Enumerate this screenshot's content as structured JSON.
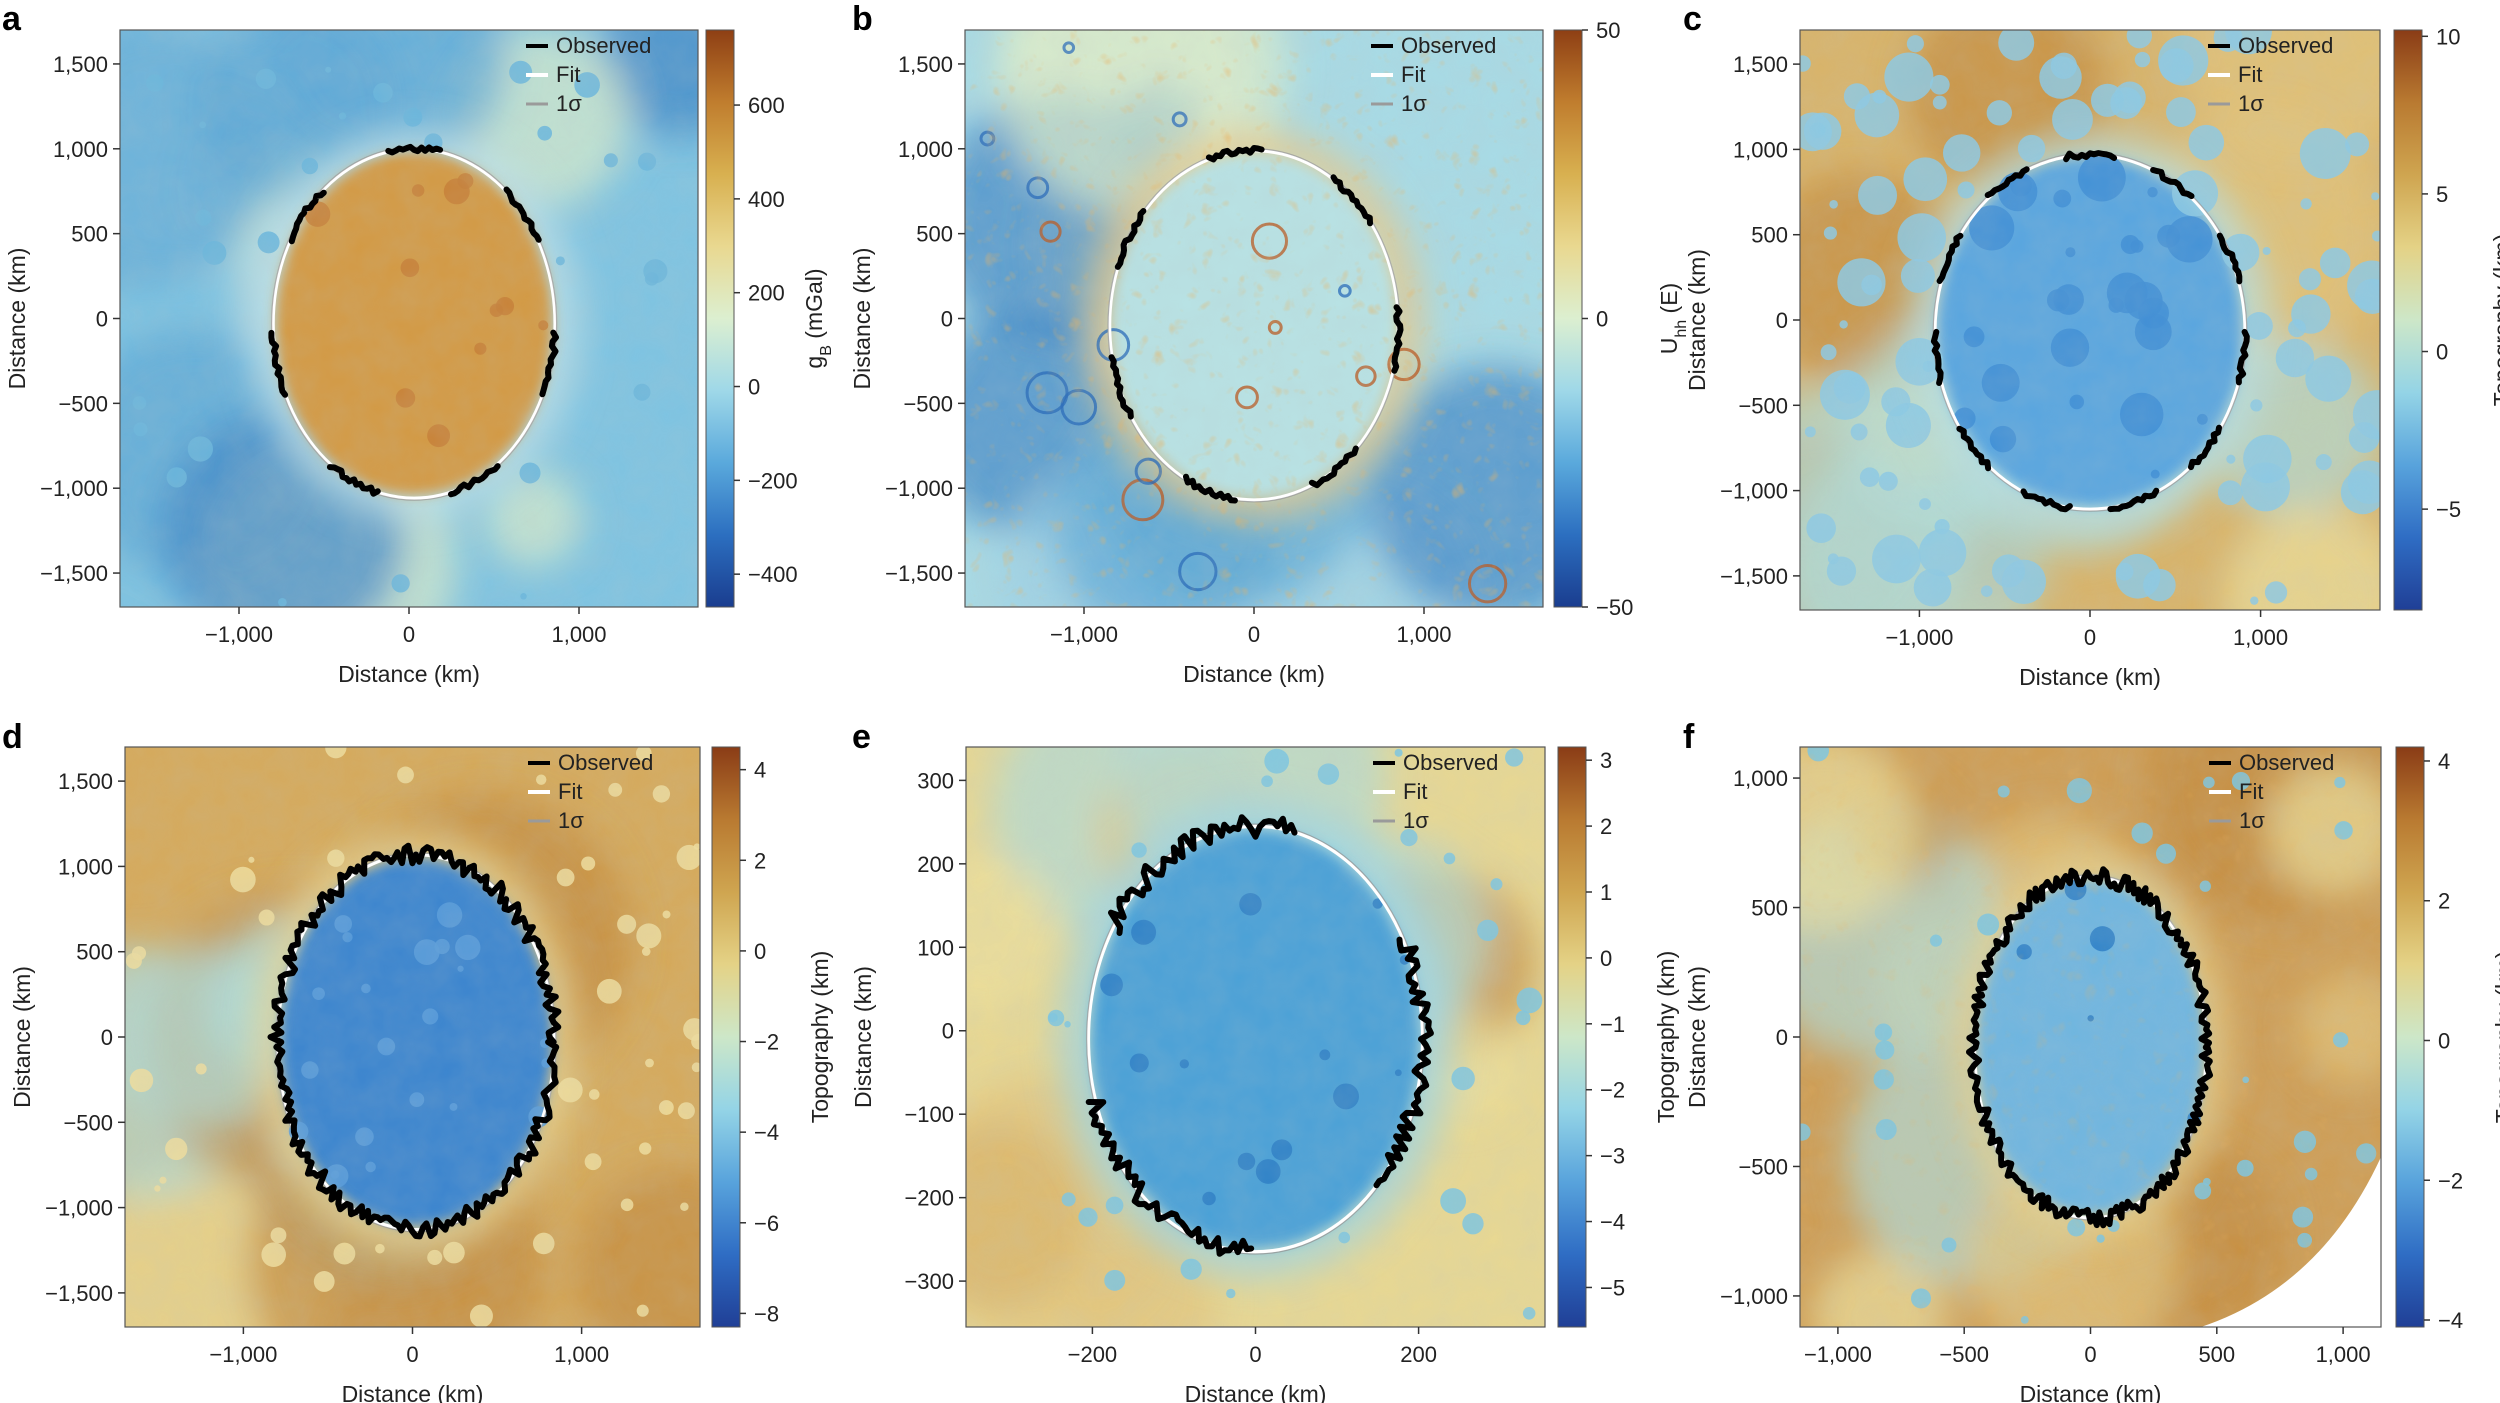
{
  "chart_data": [
    {
      "panel": "a",
      "type": "heatmap",
      "xlabel": "Distance (km)",
      "ylabel": "Distance (km)",
      "xlim": [
        -1700,
        1700
      ],
      "ylim": [
        -1700,
        1700
      ],
      "xticks": [
        -1000,
        0,
        1000
      ],
      "xtick_labels": [
        "−1,000",
        "0",
        "1,000"
      ],
      "yticks": [
        1500,
        1000,
        500,
        0,
        -500,
        -1000,
        -1500
      ],
      "ytick_labels": [
        "1,500",
        "1,000",
        "500",
        "0",
        "−500",
        "−1,000",
        "−1,500"
      ],
      "colorbar": {
        "label_main": "g",
        "label_sub": "B",
        "label_unit": " (mGal)",
        "range": [
          -470,
          760
        ],
        "ticks": [
          600,
          400,
          200,
          0,
          -200,
          -400
        ],
        "tick_labels": [
          "600",
          "400",
          "200",
          "0",
          "−200",
          "−400"
        ]
      },
      "legend": [
        "Observed",
        "Fit",
        "1σ"
      ],
      "fit_ellipse": {
        "cx": 30,
        "cy": -30,
        "rx": 830,
        "ry": 1030
      },
      "background": "gravity-anomaly"
    },
    {
      "panel": "b",
      "type": "heatmap",
      "xlabel": "Distance (km)",
      "ylabel": "Distance (km)",
      "xlim": [
        -1700,
        1700
      ],
      "ylim": [
        -1700,
        1700
      ],
      "xticks": [
        -1000,
        0,
        1000
      ],
      "xtick_labels": [
        "−1,000",
        "0",
        "1,000"
      ],
      "yticks": [
        1500,
        1000,
        500,
        0,
        -500,
        -1000,
        -1500
      ],
      "ytick_labels": [
        "1,500",
        "1,000",
        "500",
        "0",
        "−500",
        "−1,000",
        "−1,500"
      ],
      "colorbar": {
        "label_main": "U",
        "label_sub": "hh",
        "label_unit": " (E)",
        "range": [
          -50,
          50
        ],
        "ticks": [
          50,
          0,
          -50
        ],
        "tick_labels": [
          "50",
          "0",
          "−50"
        ]
      },
      "legend": [
        "Observed",
        "Fit",
        "1σ"
      ],
      "fit_ellipse": {
        "cx": 0,
        "cy": -40,
        "rx": 850,
        "ry": 1030
      },
      "background": "gravity-gradient"
    },
    {
      "panel": "c",
      "type": "heatmap",
      "xlabel": "Distance (km)",
      "ylabel": "Distance (km)",
      "xlim": [
        -1700,
        1700
      ],
      "ylim": [
        -1700,
        1700
      ],
      "xticks": [
        -1000,
        0,
        1000
      ],
      "xtick_labels": [
        "−1,000",
        "0",
        "1,000"
      ],
      "yticks": [
        1500,
        1000,
        500,
        0,
        -500,
        -1000,
        -1500
      ],
      "ytick_labels": [
        "1,500",
        "1,000",
        "500",
        "0",
        "−500",
        "−1,000",
        "−1,500"
      ],
      "colorbar": {
        "label_main": "Topography (km)",
        "range": [
          -8.2,
          10.2
        ],
        "ticks": [
          10,
          5,
          0,
          -5
        ],
        "tick_labels": [
          "10",
          "5",
          "0",
          "−5"
        ]
      },
      "legend": [
        "Observed",
        "Fit",
        "1σ"
      ],
      "fit_ellipse": {
        "cx": 0,
        "cy": -70,
        "rx": 910,
        "ry": 1040
      },
      "background": "topography-cratered"
    },
    {
      "panel": "d",
      "type": "heatmap",
      "xlabel": "Distance (km)",
      "ylabel": "Distance (km)",
      "xlim": [
        -1700,
        1700
      ],
      "ylim": [
        -1700,
        1700
      ],
      "xticks": [
        -1000,
        0,
        1000
      ],
      "xtick_labels": [
        "−1,000",
        "0",
        "1,000"
      ],
      "yticks": [
        1500,
        1000,
        500,
        0,
        -500,
        -1000,
        -1500
      ],
      "ytick_labels": [
        "1,500",
        "1,000",
        "500",
        "0",
        "−500",
        "−1,000",
        "−1,500"
      ],
      "colorbar": {
        "label_main": "Topography (km)",
        "range": [
          -8.3,
          4.5
        ],
        "ticks": [
          4,
          2,
          0,
          -2,
          -4,
          -6,
          -8
        ],
        "tick_labels": [
          "4",
          "2",
          "0",
          "−2",
          "−4",
          "−6",
          "−8"
        ]
      },
      "legend": [
        "Observed",
        "Fit",
        "1σ"
      ],
      "fit_ellipse": {
        "cx": 20,
        "cy": -30,
        "rx": 820,
        "ry": 1100
      },
      "background": "topography-mars"
    },
    {
      "panel": "e",
      "type": "heatmap",
      "xlabel": "Distance (km)",
      "ylabel": "Distance (km)",
      "xlim": [
        -355,
        355
      ],
      "ylim": [
        -355,
        340
      ],
      "xticks": [
        -200,
        0,
        200
      ],
      "xtick_labels": [
        "−200",
        "0",
        "200"
      ],
      "yticks": [
        300,
        200,
        100,
        0,
        -100,
        -200,
        -300
      ],
      "ytick_labels": [
        "300",
        "200",
        "100",
        "0",
        "−100",
        "−200",
        "−300"
      ],
      "colorbar": {
        "label_main": "Topography (km)",
        "range": [
          -5.6,
          3.2
        ],
        "ticks": [
          3,
          2,
          1,
          0,
          -1,
          -2,
          -3,
          -4,
          -5
        ],
        "tick_labels": [
          "3",
          "2",
          "1",
          "0",
          "−1",
          "−2",
          "−3",
          "−4",
          "−5"
        ]
      },
      "legend": [
        "Observed",
        "Fit",
        "1σ"
      ],
      "fit_ellipse": {
        "cx": 0,
        "cy": -10,
        "rx": 205,
        "ry": 255
      },
      "background": "topography-smooth"
    },
    {
      "panel": "f",
      "type": "heatmap",
      "xlabel": "Distance (km)",
      "ylabel": "Distance (km)",
      "xlim": [
        -1150,
        1150
      ],
      "ylim": [
        -1120,
        1120
      ],
      "xticks": [
        -1000,
        -500,
        0,
        500,
        1000
      ],
      "xtick_labels": [
        "−1,000",
        "−500",
        "0",
        "500",
        "1,000"
      ],
      "yticks": [
        1000,
        500,
        0,
        -500,
        -1000
      ],
      "ytick_labels": [
        "1,000",
        "500",
        "0",
        "−500",
        "−1,000"
      ],
      "colorbar": {
        "label_main": "Topography (km)",
        "range": [
          -4.1,
          4.2
        ],
        "ticks": [
          4,
          2,
          0,
          -2,
          -4
        ],
        "tick_labels": [
          "4",
          "2",
          "0",
          "−2",
          "−4"
        ]
      },
      "legend": [
        "Observed",
        "Fit",
        "1σ"
      ],
      "fit_ellipse": {
        "cx": 0,
        "cy": -40,
        "rx": 460,
        "ry": 660
      },
      "background": "topography-streaked"
    }
  ]
}
